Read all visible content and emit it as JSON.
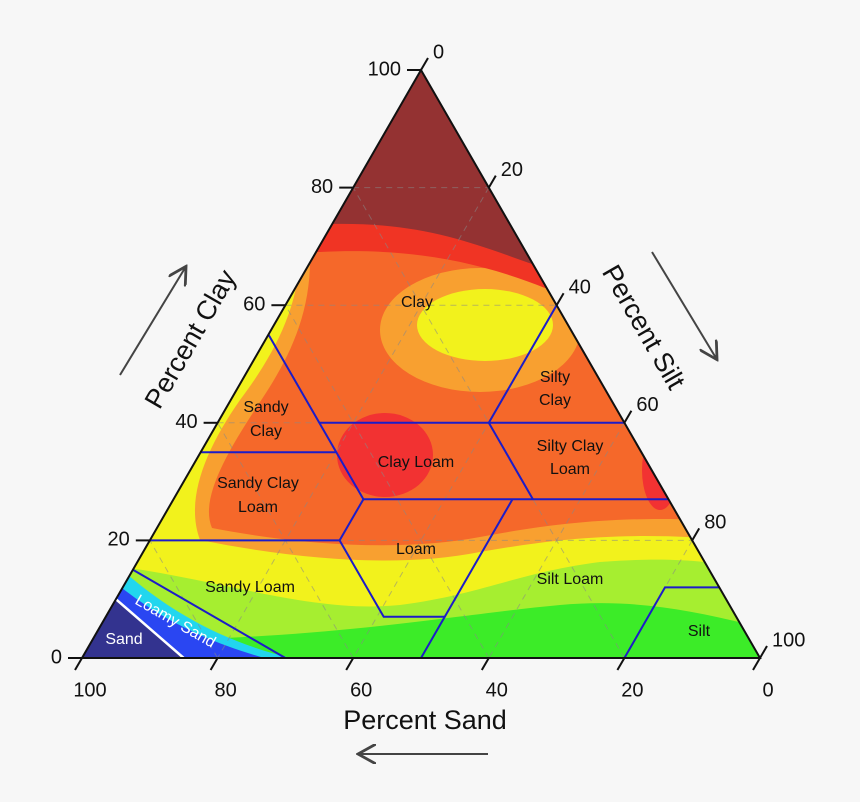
{
  "chart_data": {
    "type": "ternary",
    "axes": {
      "clay": {
        "title": "Percent Clay",
        "lim": [
          0,
          100
        ],
        "ticks": [
          0,
          20,
          40,
          60,
          80,
          100
        ]
      },
      "silt": {
        "title": "Percent Silt",
        "lim": [
          0,
          100
        ],
        "ticks": [
          0,
          20,
          40,
          60,
          80,
          100
        ]
      },
      "sand": {
        "title": "Percent Sand",
        "lim": [
          0,
          100
        ],
        "ticks": [
          0,
          20,
          40,
          60,
          80,
          100
        ]
      }
    },
    "grid": true,
    "regions": [
      {
        "lines": [
          "Clay"
        ]
      },
      {
        "lines": [
          "Silty",
          "Clay"
        ]
      },
      {
        "lines": [
          "Sandy",
          "Clay"
        ]
      },
      {
        "lines": [
          "Silty Clay",
          "Loam"
        ]
      },
      {
        "lines": [
          "Clay Loam"
        ]
      },
      {
        "lines": [
          "Sandy Clay",
          "Loam"
        ]
      },
      {
        "lines": [
          "Loam"
        ]
      },
      {
        "lines": [
          "Sandy Loam"
        ]
      },
      {
        "lines": [
          "Silt Loam"
        ]
      },
      {
        "lines": [
          "Silt"
        ]
      },
      {
        "lines": [
          "Loamy Sand"
        ]
      },
      {
        "lines": [
          "Sand"
        ]
      }
    ]
  }
}
